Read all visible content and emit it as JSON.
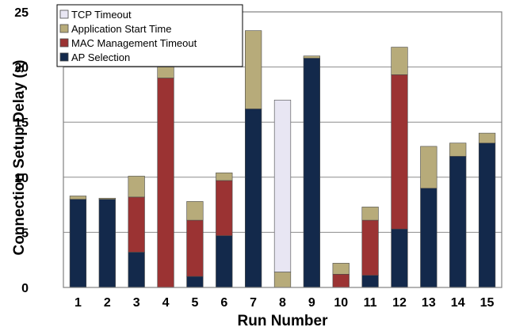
{
  "chart_data": {
    "type": "bar",
    "stacked": true,
    "title": "",
    "xlabel": "Run Number",
    "ylabel": "Connection Setup Delay (s)",
    "ylim": [
      0,
      25
    ],
    "yticks": [
      0,
      5,
      10,
      15,
      20,
      25
    ],
    "grid": true,
    "legend_position": "top-left",
    "categories": [
      "1",
      "2",
      "3",
      "4",
      "5",
      "6",
      "7",
      "8",
      "9",
      "10",
      "11",
      "12",
      "13",
      "14",
      "15"
    ],
    "series": [
      {
        "name": "AP Selection",
        "color": "#13294b",
        "values": [
          8.0,
          8.0,
          3.2,
          0,
          1.0,
          4.7,
          16.2,
          0,
          20.8,
          0,
          1.1,
          5.3,
          9.0,
          11.9,
          13.1
        ]
      },
      {
        "name": "MAC Management Timeout",
        "color": "#9b3333",
        "values": [
          0,
          0,
          5.0,
          19.0,
          5.1,
          5.0,
          0,
          0,
          0,
          1.2,
          5.0,
          14.0,
          0,
          0,
          0
        ]
      },
      {
        "name": "Application Start Time",
        "color": "#b7ab7a",
        "values": [
          0.3,
          0.1,
          1.9,
          1.0,
          1.7,
          0.7,
          7.1,
          1.4,
          0.2,
          1.0,
          1.2,
          2.5,
          3.8,
          1.2,
          0.9
        ]
      },
      {
        "name": "TCP Timeout",
        "color": "#e8e6f3",
        "values": [
          0,
          0,
          0,
          0,
          0,
          0,
          0,
          15.6,
          0,
          0,
          0,
          0,
          0,
          0,
          0
        ]
      }
    ]
  }
}
